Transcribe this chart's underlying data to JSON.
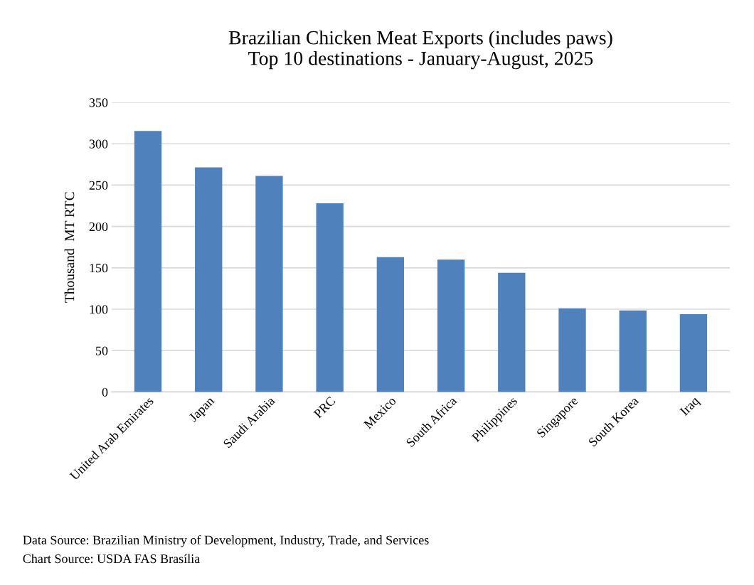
{
  "chart_data": {
    "type": "bar",
    "title": "Brazilian Chicken Meat Exports (includes paws)\nTop 10 destinations - January-August, 2025",
    "ylabel": "Thousand  MT RTC",
    "categories": [
      "United Arab Emirates",
      "Japan",
      "Saudi Arabia",
      "PRC",
      "Mexico",
      "South Africa",
      "Philippines",
      "Singapore",
      "South Korea",
      "Iraq"
    ],
    "values": [
      315.5,
      271.5,
      261,
      228,
      163,
      160,
      144,
      101,
      98.5,
      94
    ],
    "color": "#4f81bd",
    "ylim": [
      0,
      350
    ],
    "yticks": [
      0,
      50,
      100,
      150,
      200,
      250,
      300,
      350
    ],
    "grid": "y",
    "annotations": [
      "Data Source: Brazilian Ministry of Development, Industry, Trade, and Services",
      "Chart Source: USDA FAS Brasília"
    ]
  }
}
